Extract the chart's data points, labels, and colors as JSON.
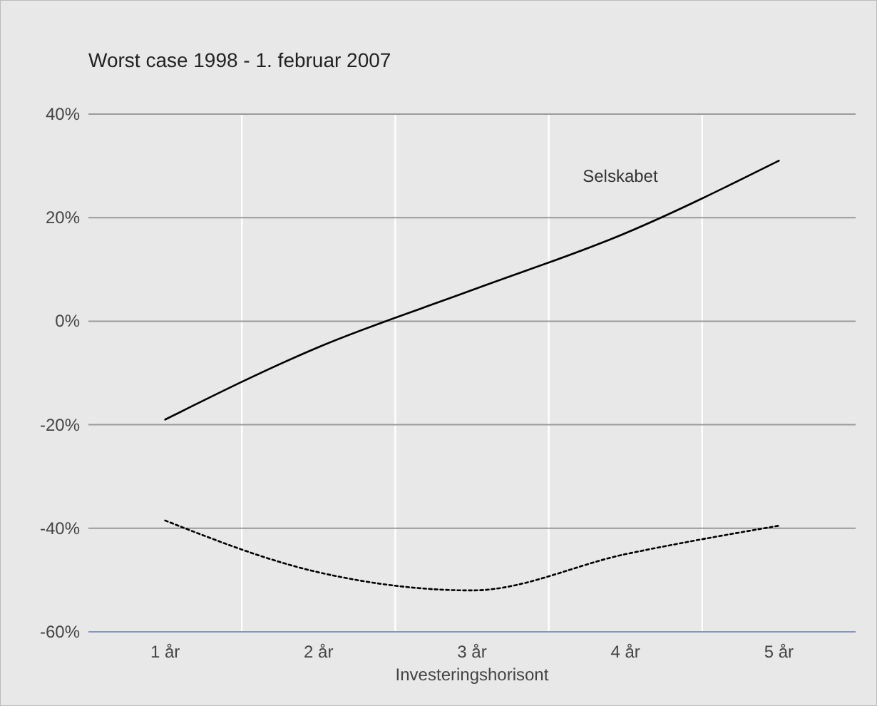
{
  "chart_data": {
    "type": "line",
    "title": "Worst case 1998 - 1. februar 2007",
    "xlabel": "Investeringshorisont",
    "categories": [
      "1 år",
      "2 år",
      "3 år",
      "4 år",
      "5 år"
    ],
    "series": [
      {
        "name": "Selskabet",
        "color": "#000000",
        "line_style": "solid",
        "values": [
          -19,
          -5,
          6,
          17,
          31
        ]
      },
      {
        "color": "#000000",
        "line_style": "dotted",
        "values": [
          -38.5,
          -48.5,
          -52,
          -45,
          -39.5
        ]
      }
    ],
    "ylim": [
      -60,
      40
    ],
    "yticks": [
      {
        "value": -60,
        "label": "-60%"
      },
      {
        "value": -40,
        "label": "-40%"
      },
      {
        "value": -20,
        "label": "-20%"
      },
      {
        "value": 0,
        "label": "0%"
      },
      {
        "value": 20,
        "label": "20%"
      },
      {
        "value": 40,
        "label": "40%"
      }
    ],
    "grid": true
  }
}
